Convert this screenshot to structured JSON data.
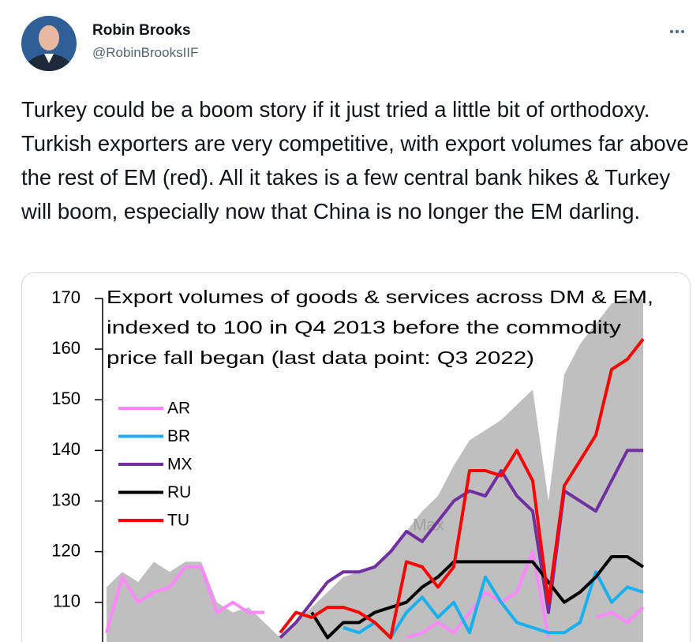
{
  "author": {
    "name": "Robin Brooks",
    "handle": "@RobinBrooksIIF"
  },
  "text": "Turkey could be a boom story if it just tried a little bit of orthodoxy. Turkish exporters are very competitive, with export volumes far above the rest of EM (red). All it takes is a few central bank hikes & Turkey will boom, especially now that China is no longer the EM darling.",
  "chart_data": {
    "type": "line",
    "title": [
      "Export volumes of goods & services across DM & EM,",
      "indexed to 100 in Q4 2013  before the commodity",
      "price fall began (last data point: Q3 2022)"
    ],
    "categories": [
      null,
      null,
      null,
      null,
      null,
      null,
      null,
      null,
      null,
      null,
      null,
      null,
      null,
      null,
      null,
      null,
      null,
      null,
      null,
      null,
      null,
      null,
      null,
      null,
      null,
      null,
      null,
      null,
      null,
      null,
      null,
      null,
      null,
      null,
      null
    ],
    "ylim": [
      102,
      170
    ],
    "yticks": [
      110,
      120,
      130,
      140,
      150,
      160,
      170
    ],
    "legend": "upper left",
    "series": [
      {
        "name": "Max",
        "color": "#bfbfbf",
        "style": "area",
        "values": [
          113,
          116,
          114,
          118,
          116,
          118,
          118,
          110,
          108,
          109,
          106,
          103,
          106,
          109,
          112,
          115,
          116,
          117,
          120,
          124,
          128,
          131,
          137,
          142,
          144,
          146,
          149,
          152,
          130,
          155,
          161,
          165,
          169,
          170,
          170
        ]
      },
      {
        "name": "AR",
        "color": "#ff88ff",
        "values": [
          104,
          115,
          110,
          112,
          113,
          117,
          117,
          108,
          110,
          108,
          108,
          null,
          null,
          null,
          null,
          null,
          null,
          null,
          null,
          103,
          104,
          106,
          104,
          108,
          112,
          110,
          112,
          120,
          103,
          null,
          null,
          107,
          108,
          106,
          109
        ]
      },
      {
        "name": "BR",
        "color": "#19b0ef",
        "values": [
          null,
          null,
          null,
          null,
          null,
          null,
          null,
          null,
          null,
          null,
          null,
          null,
          null,
          null,
          null,
          105,
          104,
          106,
          103,
          108,
          111,
          107,
          110,
          104,
          115,
          110,
          106,
          105,
          104,
          104,
          106,
          116,
          110,
          113,
          112
        ]
      },
      {
        "name": "MX",
        "color": "#7030a0",
        "values": [
          null,
          null,
          null,
          null,
          null,
          null,
          null,
          null,
          null,
          null,
          null,
          103,
          106,
          110,
          114,
          116,
          116,
          117,
          120,
          124,
          122,
          126,
          130,
          132,
          131,
          136,
          131,
          128,
          108,
          132,
          130,
          128,
          134,
          140,
          140
        ]
      },
      {
        "name": "RU",
        "color": "#000000",
        "values": [
          null,
          null,
          null,
          null,
          null,
          null,
          null,
          null,
          null,
          null,
          null,
          null,
          null,
          108,
          103,
          106,
          106,
          108,
          109,
          110,
          113,
          115,
          118,
          118,
          118,
          118,
          118,
          118,
          114,
          110,
          112,
          115,
          119,
          119,
          117
        ]
      },
      {
        "name": "TU",
        "color": "#ff0000",
        "values": [
          null,
          null,
          null,
          null,
          null,
          null,
          null,
          null,
          null,
          null,
          null,
          104,
          108,
          107,
          109,
          109,
          108,
          106,
          103,
          118,
          117,
          113,
          117,
          136,
          136,
          135,
          140,
          134,
          110,
          133,
          138,
          143,
          156,
          158,
          162
        ]
      }
    ]
  }
}
